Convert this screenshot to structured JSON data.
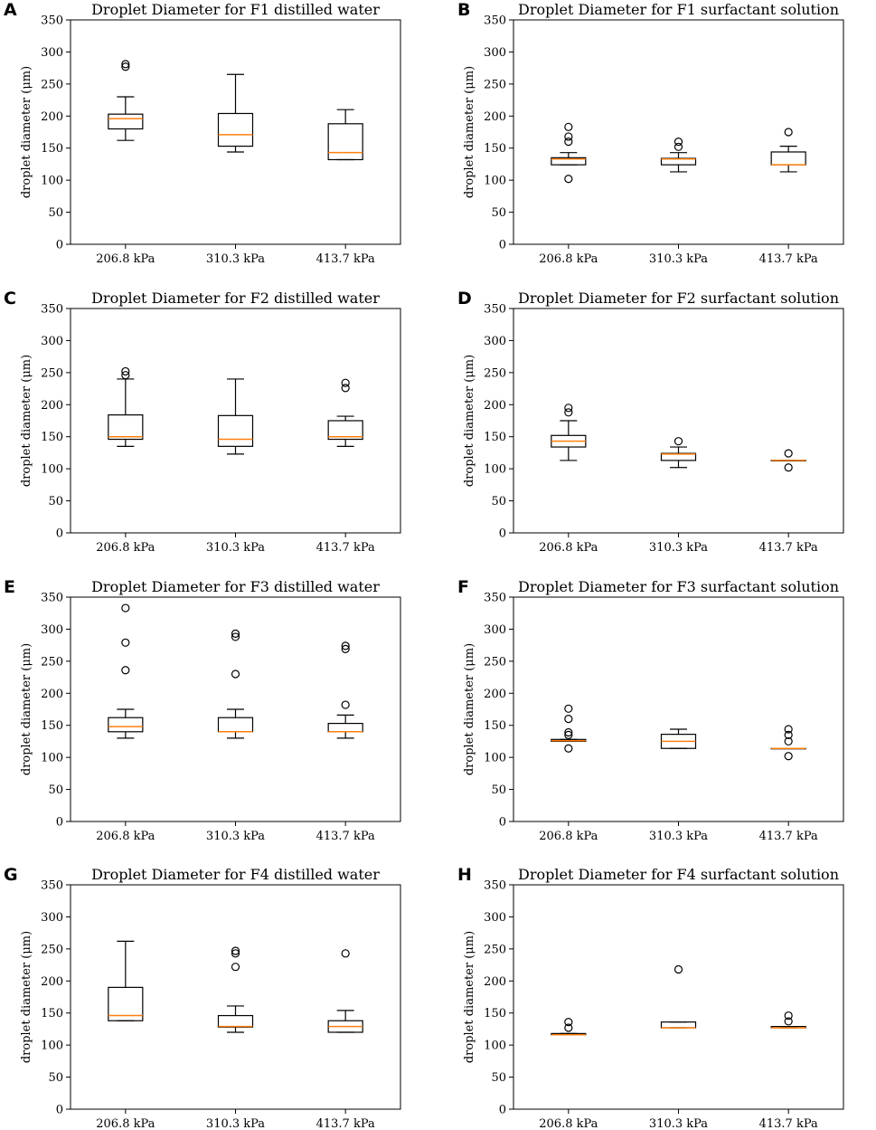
{
  "chart_data": [
    {
      "panel": "A",
      "type": "box",
      "title": "Droplet Diameter for F1 distilled water",
      "ylabel": "droplet diameter (μm)",
      "xlabel": "",
      "ylim": [
        0,
        350
      ],
      "yticks": [
        0,
        50,
        100,
        150,
        200,
        250,
        300,
        350
      ],
      "categories": [
        "206.8 kPa",
        "310.3 kPa",
        "413.7 kPa"
      ],
      "boxes": [
        {
          "whisker_low": 162,
          "q1": 180,
          "median": 196,
          "q3": 203,
          "whisker_high": 230,
          "outliers": [
            277,
            281
          ]
        },
        {
          "whisker_low": 144,
          "q1": 153,
          "median": 171,
          "q3": 204,
          "whisker_high": 265,
          "outliers": []
        },
        {
          "whisker_low": 132,
          "q1": 132,
          "median": 143,
          "q3": 188,
          "whisker_high": 210,
          "outliers": []
        }
      ]
    },
    {
      "panel": "B",
      "type": "box",
      "title": "Droplet Diameter for F1 surfactant solution",
      "ylabel": "droplet diameter (μm)",
      "xlabel": "",
      "ylim": [
        0,
        350
      ],
      "yticks": [
        0,
        50,
        100,
        150,
        200,
        250,
        300,
        350
      ],
      "categories": [
        "206.8 kPa",
        "310.3 kPa",
        "413.7 kPa"
      ],
      "boxes": [
        {
          "whisker_low": 124,
          "q1": 124,
          "median": 133,
          "q3": 135,
          "whisker_high": 143,
          "outliers": [
            102,
            160,
            168,
            183
          ]
        },
        {
          "whisker_low": 113,
          "q1": 124,
          "median": 133,
          "q3": 134,
          "whisker_high": 143,
          "outliers": [
            152,
            160
          ]
        },
        {
          "whisker_low": 113,
          "q1": 124,
          "median": 124,
          "q3": 144,
          "whisker_high": 153,
          "outliers": [
            175
          ]
        }
      ]
    },
    {
      "panel": "C",
      "type": "box",
      "title": "Droplet Diameter for F2 distilled water",
      "ylabel": "droplet diameter (μm)",
      "xlabel": "",
      "ylim": [
        0,
        350
      ],
      "yticks": [
        0,
        50,
        100,
        150,
        200,
        250,
        300,
        350
      ],
      "categories": [
        "206.8 kPa",
        "310.3 kPa",
        "413.7 kPa"
      ],
      "boxes": [
        {
          "whisker_low": 135,
          "q1": 146,
          "median": 150,
          "q3": 184,
          "whisker_high": 240,
          "outliers": [
            246,
            252
          ]
        },
        {
          "whisker_low": 123,
          "q1": 135,
          "median": 146,
          "q3": 183,
          "whisker_high": 240,
          "outliers": []
        },
        {
          "whisker_low": 135,
          "q1": 146,
          "median": 150,
          "q3": 175,
          "whisker_high": 182,
          "outliers": [
            226,
            234
          ]
        }
      ]
    },
    {
      "panel": "D",
      "type": "box",
      "title": "Droplet Diameter for F2 surfactant solution",
      "ylabel": "droplet diameter (μm)",
      "xlabel": "",
      "ylim": [
        0,
        350
      ],
      "yticks": [
        0,
        50,
        100,
        150,
        200,
        250,
        300,
        350
      ],
      "categories": [
        "206.8 kPa",
        "310.3 kPa",
        "413.7 kPa"
      ],
      "boxes": [
        {
          "whisker_low": 113,
          "q1": 134,
          "median": 143,
          "q3": 152,
          "whisker_high": 175,
          "outliers": [
            188,
            195
          ]
        },
        {
          "whisker_low": 102,
          "q1": 113,
          "median": 123,
          "q3": 124,
          "whisker_high": 134,
          "outliers": [
            143
          ]
        },
        {
          "whisker_low": 113,
          "q1": 113,
          "median": 113,
          "q3": 113,
          "whisker_high": 113,
          "outliers": [
            102,
            124
          ]
        }
      ]
    },
    {
      "panel": "E",
      "type": "box",
      "title": "Droplet Diameter for F3 distilled water",
      "ylabel": "droplet diameter (μm)",
      "xlabel": "",
      "ylim": [
        0,
        350
      ],
      "yticks": [
        0,
        50,
        100,
        150,
        200,
        250,
        300,
        350
      ],
      "categories": [
        "206.8 kPa",
        "310.3 kPa",
        "413.7 kPa"
      ],
      "boxes": [
        {
          "whisker_low": 130,
          "q1": 140,
          "median": 148,
          "q3": 162,
          "whisker_high": 175,
          "outliers": [
            236,
            279,
            333
          ]
        },
        {
          "whisker_low": 130,
          "q1": 140,
          "median": 140,
          "q3": 162,
          "whisker_high": 175,
          "outliers": [
            230,
            288,
            293
          ]
        },
        {
          "whisker_low": 130,
          "q1": 140,
          "median": 140,
          "q3": 153,
          "whisker_high": 166,
          "outliers": [
            182,
            269,
            274
          ]
        }
      ]
    },
    {
      "panel": "F",
      "type": "box",
      "title": "Droplet Diameter for F3 surfactant solution",
      "ylabel": "droplet diameter (μm)",
      "xlabel": "",
      "ylim": [
        0,
        350
      ],
      "yticks": [
        0,
        50,
        100,
        150,
        200,
        250,
        300,
        350
      ],
      "categories": [
        "206.8 kPa",
        "310.3 kPa",
        "413.7 kPa"
      ],
      "boxes": [
        {
          "whisker_low": 125,
          "q1": 125,
          "median": 126,
          "q3": 128,
          "whisker_high": 128,
          "outliers": [
            114,
            135,
            139,
            160,
            176
          ]
        },
        {
          "whisker_low": 114,
          "q1": 114,
          "median": 125,
          "q3": 136,
          "whisker_high": 144,
          "outliers": []
        },
        {
          "whisker_low": 114,
          "q1": 114,
          "median": 114,
          "q3": 114,
          "whisker_high": 114,
          "outliers": [
            102,
            125,
            135,
            144
          ]
        }
      ]
    },
    {
      "panel": "G",
      "type": "box",
      "title": "Droplet Diameter for F4 distilled water",
      "ylabel": "droplet diameter (μm)",
      "xlabel": "",
      "ylim": [
        0,
        350
      ],
      "yticks": [
        0,
        50,
        100,
        150,
        200,
        250,
        300,
        350
      ],
      "categories": [
        "206.8 kPa",
        "310.3 kPa",
        "413.7 kPa"
      ],
      "boxes": [
        {
          "whisker_low": 138,
          "q1": 138,
          "median": 146,
          "q3": 190,
          "whisker_high": 262,
          "outliers": []
        },
        {
          "whisker_low": 120,
          "q1": 128,
          "median": 129,
          "q3": 146,
          "whisker_high": 161,
          "outliers": [
            222,
            243,
            247
          ]
        },
        {
          "whisker_low": 120,
          "q1": 120,
          "median": 129,
          "q3": 138,
          "whisker_high": 154,
          "outliers": [
            243
          ]
        }
      ]
    },
    {
      "panel": "H",
      "type": "box",
      "title": "Droplet Diameter for F4 surfactant solution",
      "ylabel": "droplet diameter (μm)",
      "xlabel": "",
      "ylim": [
        0,
        350
      ],
      "yticks": [
        0,
        50,
        100,
        150,
        200,
        250,
        300,
        350
      ],
      "categories": [
        "206.8 kPa",
        "310.3 kPa",
        "413.7 kPa"
      ],
      "boxes": [
        {
          "whisker_low": 116,
          "q1": 116,
          "median": 116,
          "q3": 118,
          "whisker_high": 118,
          "outliers": [
            127,
            136
          ]
        },
        {
          "whisker_low": 127,
          "q1": 127,
          "median": 127,
          "q3": 136,
          "whisker_high": 136,
          "outliers": [
            218
          ]
        },
        {
          "whisker_low": 127,
          "q1": 127,
          "median": 127,
          "q3": 129,
          "whisker_high": 129,
          "outliers": [
            137,
            146
          ]
        }
      ]
    }
  ],
  "style": {
    "box_color": "#000000",
    "median_color": "#ff7f0e"
  }
}
